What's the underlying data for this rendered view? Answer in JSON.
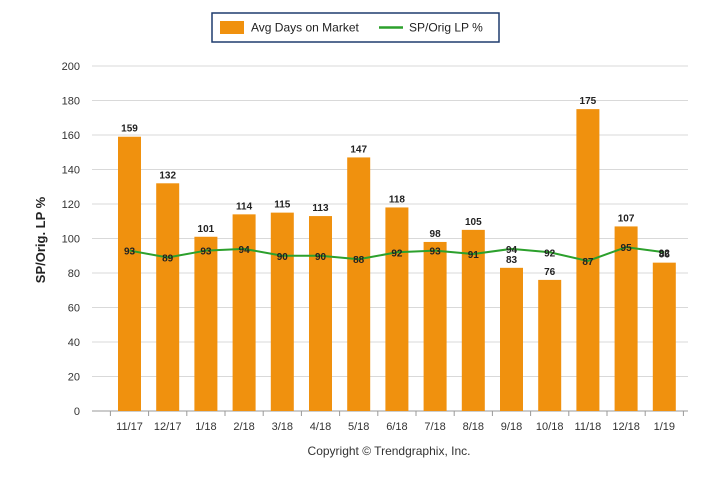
{
  "chart_data": {
    "type": "bar",
    "categories": [
      "11/17",
      "12/17",
      "1/18",
      "2/18",
      "3/18",
      "4/18",
      "5/18",
      "6/18",
      "7/18",
      "8/18",
      "9/18",
      "10/18",
      "11/18",
      "12/18",
      "1/19"
    ],
    "series": [
      {
        "name": "Avg Days on Market",
        "type": "bar",
        "color": "#f0910e",
        "values": [
          159,
          132,
          101,
          114,
          115,
          113,
          147,
          118,
          98,
          105,
          83,
          76,
          175,
          107,
          86
        ]
      },
      {
        "name": "SP/Orig LP %",
        "type": "line",
        "color": "#2ca02c",
        "values": [
          93,
          89,
          93,
          94,
          90,
          90,
          88,
          92,
          93,
          91,
          94,
          92,
          87,
          95,
          92
        ]
      }
    ],
    "ylabel": "SP/Orig. LP %",
    "ylim": [
      0,
      200
    ],
    "yticks": [
      0,
      20,
      40,
      60,
      80,
      100,
      120,
      140,
      160,
      180,
      200
    ],
    "grid": true,
    "legend_position": "top-center"
  },
  "copyright": "Copyright © Trendgraphix, Inc."
}
